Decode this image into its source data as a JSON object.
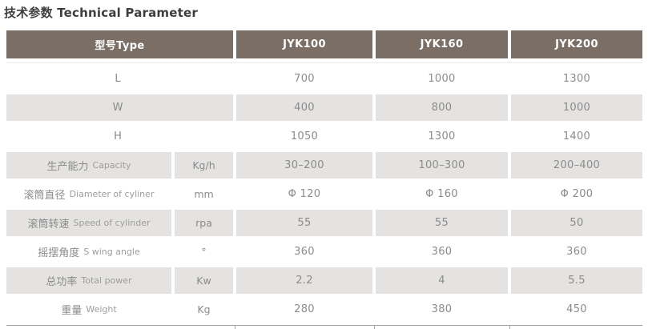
{
  "title": "技术参数 Technical Parameter",
  "colors": {
    "title_text": "#3e3e3e",
    "header_bg": "#7a6e65",
    "header_text": "#ffffff",
    "row_bg": "#ffffff",
    "row_stripe_bg": "#e4e3e1",
    "body_text": "#8b8b8b",
    "label_en_text": "#9d9d9d",
    "border_line": "#a3a3a3"
  },
  "table": {
    "header": {
      "type_label": "型号Type",
      "models": [
        "JYK100",
        "JYK160",
        "JYK200"
      ]
    },
    "rows": [
      {
        "label": "L",
        "label_en": "",
        "unit": "",
        "merged": true,
        "values": [
          "700",
          "1000",
          "1300"
        ]
      },
      {
        "label": "W",
        "label_en": "",
        "unit": "",
        "merged": true,
        "values": [
          "400",
          "800",
          "1000"
        ]
      },
      {
        "label": "H",
        "label_en": "",
        "unit": "",
        "merged": true,
        "values": [
          "1050",
          "1300",
          "1400"
        ]
      },
      {
        "label": "生产能力",
        "label_en": "Capacity",
        "unit": "Kg/h",
        "merged": false,
        "values": [
          "30–200",
          "100–300",
          "200–400"
        ]
      },
      {
        "label": "滚筒直径",
        "label_en": "Diameter of cyliner",
        "unit": "mm",
        "merged": false,
        "values": [
          "Φ 120",
          "Φ 160",
          "Φ 200"
        ]
      },
      {
        "label": "滚筒转速",
        "label_en": "Speed of cylinder",
        "unit": "rpa",
        "merged": false,
        "values": [
          "55",
          "55",
          "50"
        ]
      },
      {
        "label": "摇摆角度",
        "label_en": "S wing angle",
        "unit": "°",
        "merged": false,
        "values": [
          "360",
          "360",
          "360"
        ]
      },
      {
        "label": "总功率",
        "label_en": "Total power",
        "unit": "Kw",
        "merged": false,
        "values": [
          "2.2",
          "4",
          "5.5"
        ]
      },
      {
        "label": "重量",
        "label_en": "Weight",
        "unit": "Kg",
        "merged": false,
        "values": [
          "280",
          "380",
          "450"
        ]
      }
    ]
  }
}
